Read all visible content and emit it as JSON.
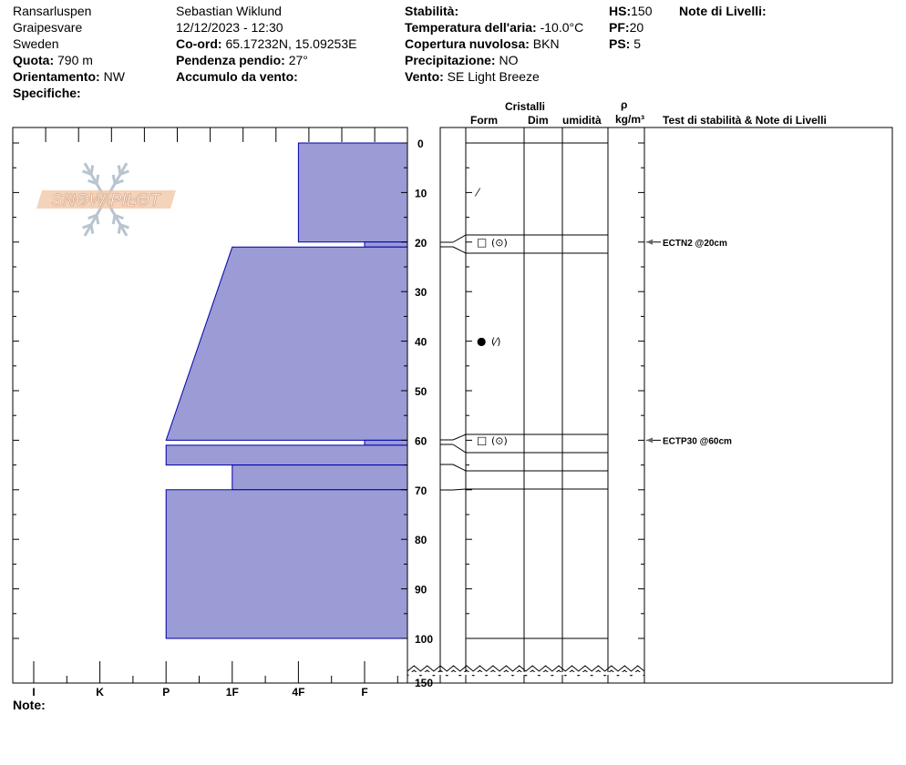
{
  "header": {
    "location": "Ransarluspen",
    "area": "Graipesvare",
    "country": "Sweden",
    "elevation_label": "Quota:",
    "elevation": "790 m",
    "aspect_label": "Orientamento:",
    "aspect": "NW",
    "specifics_label": "Specifiche:",
    "observer": "Sebastian Wiklund",
    "datetime": "12/12/2023 - 12:30",
    "coord_label": "Co-ord:",
    "coord": "65.17232N, 15.09253E",
    "slope_label": "Pendenza pendio:",
    "slope": "27°",
    "wind_loading_label": "Accumulo da vento:",
    "stability_label": "Stabilità:",
    "air_temp_label": "Temperatura dell'aria:",
    "air_temp": "-10.0°C",
    "sky_label": "Copertura nuvolosa:",
    "sky": "BKN",
    "precip_label": "Precipitazione:",
    "precip": "NO",
    "wind_label": "Vento:",
    "wind": "SE  Light Breeze",
    "hs_label": "HS:",
    "hs": "150",
    "pf_label": "PF:",
    "pf": "20",
    "ps_label": "PS:",
    "ps": "5",
    "layer_notes_label": "Note di Livelli:"
  },
  "columns": {
    "crystals": "Cristalli",
    "form": "Form",
    "size": "Dim",
    "moisture": "umidità",
    "rho": "ρ",
    "density_unit": "kg/m³",
    "tests": "Test di stabilità & Note di Livelli"
  },
  "hardness_axis": [
    "I",
    "K",
    "P",
    "1F",
    "4F",
    "F"
  ],
  "depth_labels": [
    "0",
    "10",
    "20",
    "30",
    "40",
    "50",
    "60",
    "70",
    "80",
    "90",
    "100",
    "150"
  ],
  "note_label": "Note:",
  "layers": [
    {
      "top": 0,
      "bottom": 20,
      "hardness_top": "4F",
      "hardness_bottom": "4F"
    },
    {
      "top": 20,
      "bottom": 21,
      "hardness_top": "F",
      "hardness_bottom": "F"
    },
    {
      "top": 21,
      "bottom": 60,
      "hardness_top": "1F",
      "hardness_bottom": "P"
    },
    {
      "top": 60,
      "bottom": 61,
      "hardness_top": "F",
      "hardness_bottom": "F"
    },
    {
      "top": 61,
      "bottom": 65,
      "hardness_top": "P",
      "hardness_bottom": "P"
    },
    {
      "top": 65,
      "bottom": 70,
      "hardness_top": "1F",
      "hardness_bottom": "1F"
    },
    {
      "top": 70,
      "bottom": 100,
      "hardness_top": "P",
      "hardness_bottom": "P"
    }
  ],
  "crystals": [
    {
      "depth": 10,
      "form": "⁄",
      "secondary": ""
    },
    {
      "depth": 20,
      "form": "□",
      "secondary": "(⊙)"
    },
    {
      "depth": 40,
      "form": "●",
      "secondary": "(⁄)"
    },
    {
      "depth": 60,
      "form": "□",
      "secondary": "(⊙)"
    }
  ],
  "tests": [
    {
      "depth": 20,
      "text": "ECTN2 @20cm"
    },
    {
      "depth": 60,
      "text": "ECTP30 @60cm"
    }
  ],
  "logo_text": "SNOW PILOT",
  "colors": {
    "layer_fill": "#9b9bd6",
    "layer_stroke": "#0000aa",
    "logo": "#f0c8a8",
    "snowflake": "#b8c4d0"
  }
}
